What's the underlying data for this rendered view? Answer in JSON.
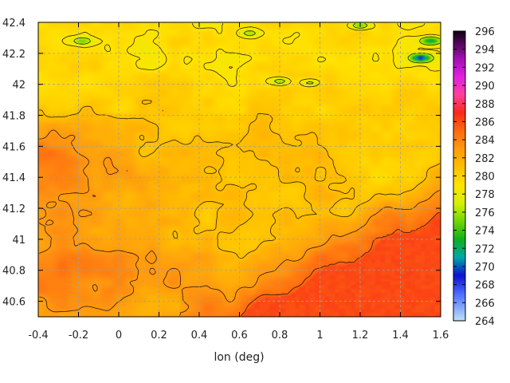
{
  "chart_data": {
    "type": "heatmap",
    "title": "",
    "xlabel": "lon (deg)",
    "ylabel": "",
    "xlim": [
      -0.4,
      1.6
    ],
    "ylim": [
      40.5,
      42.4
    ],
    "x_ticks": [
      "-0.4",
      "-0.2",
      "0",
      "0.2",
      "0.4",
      "0.6",
      "0.8",
      "1",
      "1.2",
      "1.4",
      "1.6"
    ],
    "y_ticks": [
      "40.6",
      "40.8",
      "41",
      "41.2",
      "41.4",
      "41.6",
      "41.8",
      "42",
      "42.2",
      "42.4"
    ],
    "grid": true,
    "colorbar": {
      "range": [
        264,
        296
      ],
      "ticks": [
        "264",
        "266",
        "268",
        "270",
        "272",
        "274",
        "276",
        "278",
        "280",
        "282",
        "284",
        "286",
        "288",
        "290",
        "292",
        "294",
        "296"
      ],
      "stops": [
        {
          "value": 264,
          "color": "#bfe3f8"
        },
        {
          "value": 267,
          "color": "#4a6cff"
        },
        {
          "value": 269,
          "color": "#1010d0"
        },
        {
          "value": 271,
          "color": "#00a8a8"
        },
        {
          "value": 273,
          "color": "#10b020"
        },
        {
          "value": 275,
          "color": "#70d800"
        },
        {
          "value": 277,
          "color": "#d8f000"
        },
        {
          "value": 279,
          "color": "#ffe400"
        },
        {
          "value": 281,
          "color": "#ffc000"
        },
        {
          "value": 283,
          "color": "#ff9a10"
        },
        {
          "value": 285,
          "color": "#ff6a10"
        },
        {
          "value": 287,
          "color": "#f82a18"
        },
        {
          "value": 289,
          "color": "#ff40a0"
        },
        {
          "value": 291,
          "color": "#e020e0"
        },
        {
          "value": 293,
          "color": "#a010b0"
        },
        {
          "value": 296,
          "color": "#100010"
        }
      ]
    },
    "field_summary": {
      "sea_value": 286,
      "coast_value": 285,
      "interior_plain_value": 281,
      "mountain_value": 279.5,
      "peak_values": [
        {
          "lon": -0.18,
          "lat": 42.28,
          "value": 275
        },
        {
          "lon": 0.65,
          "lat": 42.33,
          "value": 276
        },
        {
          "lon": 0.8,
          "lat": 42.02,
          "value": 276
        },
        {
          "lon": 0.95,
          "lat": 42.01,
          "value": 276.5
        },
        {
          "lon": 1.5,
          "lat": 42.17,
          "value": 269
        },
        {
          "lon": 1.55,
          "lat": 42.28,
          "value": 272
        },
        {
          "lon": 1.2,
          "lat": 42.38,
          "value": 275
        }
      ]
    }
  }
}
